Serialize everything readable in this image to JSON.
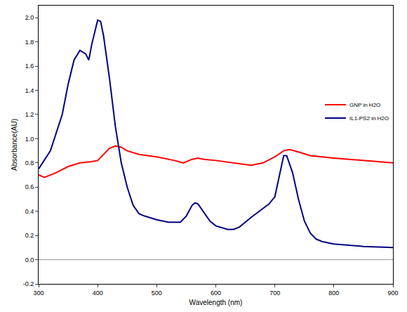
{
  "chart_data": {
    "type": "line",
    "x_label": "Wavelength (nm)",
    "y_label": "Absorbance(AU)",
    "xlim": [
      300,
      900
    ],
    "xticks": [
      300,
      400,
      500,
      600,
      700,
      800,
      900
    ],
    "ylim": [
      -0.2,
      2.1
    ],
    "yticks": [
      -0.2,
      0.0,
      0.2,
      0.4,
      0.6,
      0.8,
      1.0,
      1.2,
      1.4,
      1.6,
      1.8,
      2.0
    ],
    "grid": false,
    "legend": "right",
    "series": [
      {
        "name": "GNP in H2O",
        "color": "#ff0000",
        "x": [
          300,
          310,
          330,
          350,
          370,
          390,
          400,
          410,
          420,
          430,
          440,
          450,
          470,
          500,
          530,
          545,
          560,
          570,
          580,
          600,
          630,
          660,
          680,
          700,
          715,
          725,
          740,
          760,
          800,
          850,
          900
        ],
        "values": [
          0.7,
          0.68,
          0.72,
          0.77,
          0.8,
          0.81,
          0.82,
          0.87,
          0.92,
          0.94,
          0.93,
          0.9,
          0.87,
          0.85,
          0.82,
          0.8,
          0.83,
          0.84,
          0.83,
          0.82,
          0.8,
          0.78,
          0.8,
          0.85,
          0.9,
          0.91,
          0.89,
          0.86,
          0.84,
          0.82,
          0.8
        ]
      },
      {
        "name": "IL1-PS2 in H2O",
        "color": "#000080",
        "x": [
          300,
          320,
          340,
          350,
          360,
          370,
          380,
          385,
          390,
          400,
          405,
          410,
          420,
          430,
          440,
          450,
          460,
          470,
          480,
          500,
          520,
          540,
          550,
          560,
          565,
          570,
          580,
          590,
          600,
          620,
          630,
          640,
          660,
          680,
          690,
          700,
          710,
          715,
          720,
          730,
          740,
          750,
          760,
          770,
          780,
          800,
          850,
          900
        ],
        "values": [
          0.75,
          0.9,
          1.2,
          1.45,
          1.65,
          1.73,
          1.7,
          1.65,
          1.78,
          1.98,
          1.97,
          1.85,
          1.5,
          1.1,
          0.8,
          0.6,
          0.45,
          0.38,
          0.36,
          0.33,
          0.31,
          0.31,
          0.36,
          0.45,
          0.47,
          0.46,
          0.39,
          0.32,
          0.28,
          0.25,
          0.25,
          0.27,
          0.35,
          0.42,
          0.46,
          0.52,
          0.75,
          0.86,
          0.86,
          0.72,
          0.5,
          0.32,
          0.22,
          0.17,
          0.15,
          0.13,
          0.11,
          0.1
        ]
      }
    ]
  }
}
